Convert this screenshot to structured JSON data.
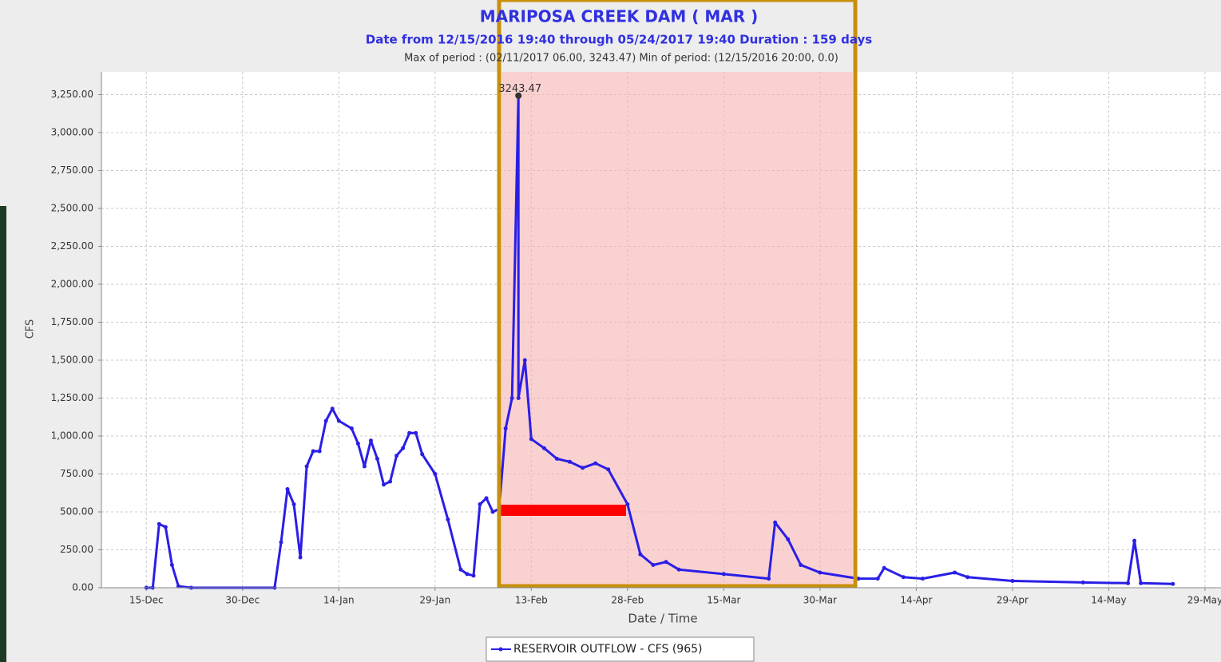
{
  "chart_data": {
    "type": "line",
    "title": "MARIPOSA CREEK DAM ( MAR )",
    "subtitle": "Date from 12/15/2016 19:40 through 05/24/2017 19:40 Duration : 159 days",
    "period_note": "Max of period : (02/11/2017 06.00, 3243.47)  Min of period: (12/15/2016 20:00,  0.0)",
    "x_label": "Date / Time",
    "y_label": "CFS",
    "peak_label": "3243.47",
    "xlim": [
      "08-Dec",
      "31-May"
    ],
    "xticks": [
      "15-Dec",
      "30-Dec",
      "14-Jan",
      "29-Jan",
      "13-Feb",
      "28-Feb",
      "15-Mar",
      "30-Mar",
      "14-Apr",
      "29-Apr",
      "14-May",
      "29-May"
    ],
    "ylim": [
      0,
      3400
    ],
    "yticks": [
      {
        "value": 0,
        "label": "0.00"
      },
      {
        "value": 250,
        "label": "250.00"
      },
      {
        "value": 500,
        "label": "500.00"
      },
      {
        "value": 750,
        "label": "750.00"
      },
      {
        "value": 1000,
        "label": "1,000.00"
      },
      {
        "value": 1250,
        "label": "1,250.00"
      },
      {
        "value": 1500,
        "label": "1,500.00"
      },
      {
        "value": 1750,
        "label": "1,750.00"
      },
      {
        "value": 2000,
        "label": "2,000.00"
      },
      {
        "value": 2250,
        "label": "2,250.00"
      },
      {
        "value": 2500,
        "label": "2,500.00"
      },
      {
        "value": 2750,
        "label": "2,750.00"
      },
      {
        "value": 3000,
        "label": "3,000.00"
      },
      {
        "value": 3250,
        "label": "3,250.00"
      }
    ],
    "grid": true,
    "x": [
      "15-Dec",
      "16-Dec",
      "17-Dec",
      "18-Dec",
      "19-Dec",
      "20-Dec",
      "22-Dec",
      "04-Jan",
      "05-Jan",
      "06-Jan",
      "07-Jan",
      "08-Jan",
      "09-Jan",
      "10-Jan",
      "11-Jan",
      "12-Jan",
      "13-Jan",
      "14-Jan",
      "16-Jan",
      "17-Jan",
      "18-Jan",
      "19-Jan",
      "20-Jan",
      "21-Jan",
      "22-Jan",
      "23-Jan",
      "24-Jan",
      "25-Jan",
      "26-Jan",
      "27-Jan",
      "29-Jan",
      "31-Jan",
      "02-Feb",
      "03-Feb",
      "04-Feb",
      "05-Feb",
      "06-Feb",
      "07-Feb",
      "08-Feb",
      "09-Feb",
      "10-Feb",
      "11-Feb",
      "11-Feb",
      "12-Feb",
      "13-Feb",
      "15-Feb",
      "17-Feb",
      "19-Feb",
      "21-Feb",
      "23-Feb",
      "25-Feb",
      "28-Feb",
      "02-Mar",
      "04-Mar",
      "06-Mar",
      "08-Mar",
      "15-Mar",
      "22-Mar",
      "23-Mar",
      "25-Mar",
      "27-Mar",
      "30-Mar",
      "05-Apr",
      "08-Apr",
      "09-Apr",
      "12-Apr",
      "15-Apr",
      "20-Apr",
      "22-Apr",
      "29-Apr",
      "10-May",
      "17-May",
      "18-May",
      "19-May",
      "24-May"
    ],
    "series": [
      {
        "name": "RESERVOIR OUTFLOW - CFS (965)",
        "color": "#2a1ee6",
        "values": [
          0,
          0,
          420,
          400,
          150,
          10,
          0,
          0,
          300,
          650,
          550,
          200,
          800,
          900,
          900,
          1100,
          1180,
          1100,
          1050,
          950,
          800,
          970,
          850,
          680,
          700,
          870,
          920,
          1020,
          1020,
          880,
          750,
          450,
          120,
          90,
          80,
          550,
          590,
          500,
          520,
          1050,
          1250,
          3243.47,
          1250,
          1500,
          980,
          920,
          850,
          830,
          790,
          820,
          780,
          550,
          220,
          150,
          170,
          120,
          90,
          60,
          430,
          320,
          150,
          100,
          60,
          60,
          130,
          70,
          60,
          100,
          70,
          45,
          35,
          30,
          310,
          30,
          25
        ]
      }
    ]
  }
}
